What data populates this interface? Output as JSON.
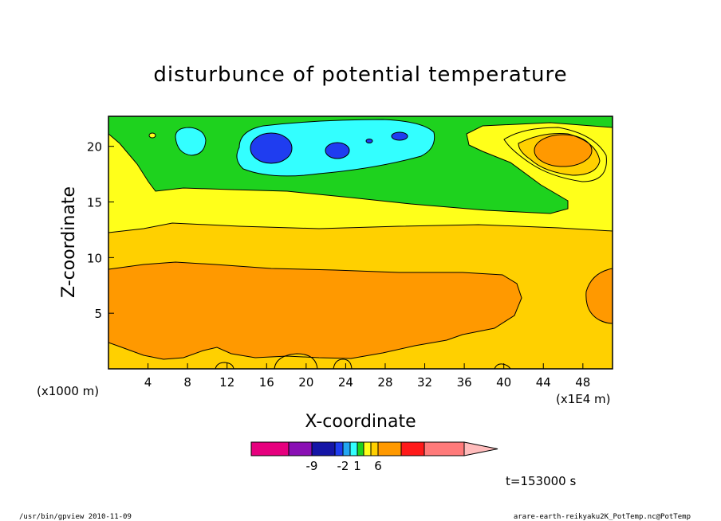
{
  "chart_data": {
    "type": "contour",
    "title": "disturbunce of potential temperature",
    "xlabel": "X-coordinate",
    "ylabel": "Z-coordinate",
    "x_unit_left": "(x1000 m)",
    "x_unit_right": "(x1E4 m)",
    "x_ticks": [
      "4",
      "8",
      "12",
      "16",
      "20",
      "24",
      "28",
      "32",
      "36",
      "40",
      "44",
      "48"
    ],
    "y_ticks": [
      "5",
      "10",
      "15",
      "20"
    ],
    "xlim": [
      0,
      51
    ],
    "ylim": [
      0,
      22.7
    ],
    "time_label": "t=153000 s",
    "colorbar": {
      "labels": [
        "-9",
        "-2",
        "1",
        "6"
      ],
      "colors": [
        "#e6007e",
        "#8a10b4",
        "#1515a6",
        "#1f3df0",
        "#23a6f2",
        "#33ffff",
        "#1ed21e",
        "#ffff1a",
        "#ffd000",
        "#ff9900",
        "#ff1a1a",
        "#ff7a7a",
        "#ffbcbc"
      ]
    },
    "fill_colors": {
      "orange": "#ff9900",
      "gold": "#ffd000",
      "yellow": "#ffff1a",
      "green": "#1ed21e",
      "cyan": "#33ffff",
      "blue": "#1f3df0"
    }
  },
  "footer": {
    "left": "/usr/bin/gpview   2010-11-09",
    "right": "arare-earth-reikyaku2K_PotTemp.nc@PotTemp"
  }
}
